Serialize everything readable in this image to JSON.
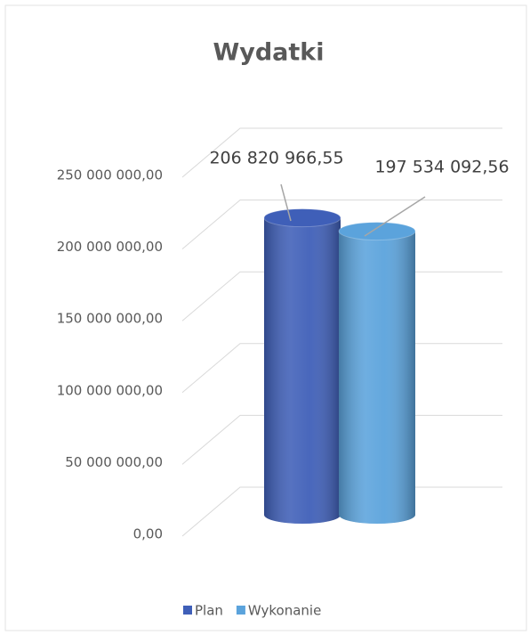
{
  "chart_data": {
    "type": "bar3d",
    "title": "Wydatki",
    "categories": [
      null
    ],
    "series": [
      {
        "name": "Plan",
        "color": "#3f5fb8",
        "values": [
          206820966.55
        ],
        "value_labels": [
          "206 820 966,55"
        ]
      },
      {
        "name": "Wykonanie",
        "color": "#5ba3dc",
        "values": [
          197534092.56
        ],
        "value_labels": [
          "197 534 092,56"
        ]
      }
    ],
    "ylim": [
      0,
      250000000
    ],
    "yticks": [
      {
        "value": 0,
        "label": "0,00"
      },
      {
        "value": 50000000,
        "label": "50 000 000,00"
      },
      {
        "value": 100000000,
        "label": "100 000 000,00"
      },
      {
        "value": 150000000,
        "label": "150 000 000,00"
      },
      {
        "value": 200000000,
        "label": "200 000 000,00"
      },
      {
        "value": 250000000,
        "label": "250 000 000,00"
      }
    ],
    "grid": true,
    "legend": "bottom"
  }
}
